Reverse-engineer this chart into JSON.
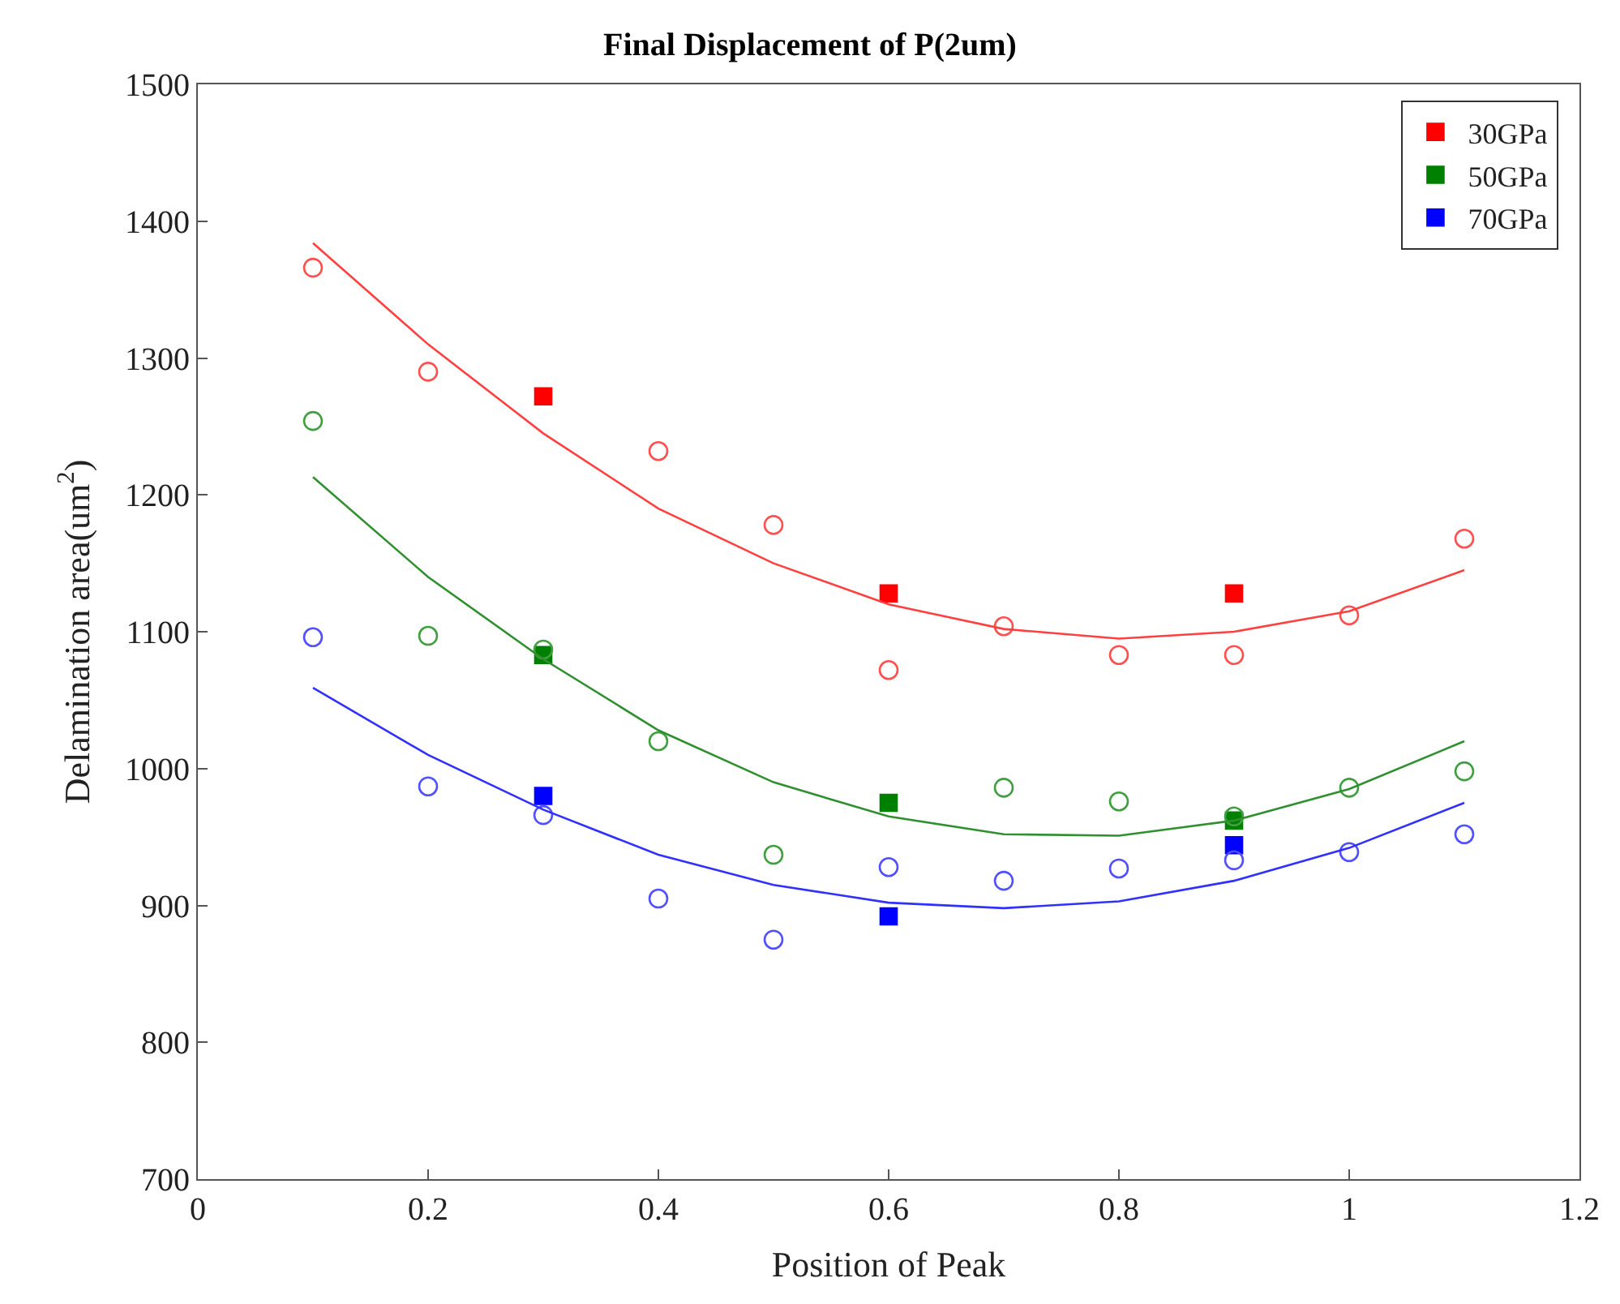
{
  "chart_data": {
    "type": "scatter",
    "title": "Final Displacement of P(2um)",
    "xlabel": "Position of Peak",
    "ylabel": "Delamination area(um$^{2}$)",
    "xlim": [
      0,
      1.2
    ],
    "xticks": [
      0,
      0.2,
      0.4,
      0.6,
      0.8,
      1,
      1.2
    ],
    "ylim": [
      700,
      1500
    ],
    "yticks": [
      700,
      800,
      900,
      1000,
      1100,
      1200,
      1300,
      1400,
      1500
    ],
    "grid": false,
    "legend": "top right",
    "series": [
      {
        "name": "30GPa",
        "marker": "square",
        "color": "#ff0000",
        "x": [
          0.3,
          0.6,
          0.9
        ],
        "values": [
          1272,
          1128,
          1128
        ]
      },
      {
        "name": "50GPa",
        "marker": "square",
        "color": "#008000",
        "x": [
          0.3,
          0.6,
          0.9
        ],
        "values": [
          1083,
          975,
          962
        ]
      },
      {
        "name": "70GPa",
        "marker": "square",
        "color": "#0000ff",
        "x": [
          0.3,
          0.6,
          0.9
        ],
        "values": [
          980,
          892,
          944
        ]
      },
      {
        "marker": "circle",
        "color": "#ff5050",
        "x": [
          0.1,
          0.2,
          0.4,
          0.5,
          0.6,
          0.7,
          0.8,
          0.9,
          1.0,
          1.1
        ],
        "values": [
          1366,
          1290,
          1232,
          1178,
          1072,
          1104,
          1083,
          1083,
          1112,
          1168
        ]
      },
      {
        "marker": "circle",
        "color": "#40a040",
        "x": [
          0.1,
          0.2,
          0.3,
          0.4,
          0.5,
          0.7,
          0.8,
          0.9,
          1.0,
          1.1
        ],
        "values": [
          1254,
          1097,
          1087,
          1020,
          937,
          986,
          976,
          965,
          986,
          998
        ]
      },
      {
        "marker": "circle",
        "color": "#5050ff",
        "x": [
          0.1,
          0.2,
          0.3,
          0.4,
          0.5,
          0.6,
          0.7,
          0.8,
          0.9,
          1.0,
          1.1
        ],
        "values": [
          1096,
          987,
          966,
          905,
          875,
          928,
          918,
          927,
          933,
          939,
          952
        ]
      },
      {
        "type": "line",
        "marker": "none",
        "line_style": "solid",
        "color": "#ff4040",
        "x": [
          0.1,
          0.2,
          0.3,
          0.4,
          0.5,
          0.6,
          0.7,
          0.8,
          0.9,
          1.0,
          1.1
        ],
        "values": [
          1384,
          1310,
          1245,
          1190,
          1150,
          1120,
          1102,
          1095,
          1100,
          1115,
          1145
        ]
      },
      {
        "type": "line",
        "marker": "none",
        "line_style": "solid",
        "color": "#309030",
        "x": [
          0.1,
          0.2,
          0.3,
          0.4,
          0.5,
          0.6,
          0.7,
          0.8,
          0.9,
          1.0,
          1.1
        ],
        "values": [
          1213,
          1140,
          1080,
          1028,
          990,
          965,
          952,
          951,
          962,
          985,
          1020
        ]
      },
      {
        "type": "line",
        "marker": "none",
        "line_style": "solid",
        "color": "#3030ff",
        "x": [
          0.1,
          0.2,
          0.3,
          0.4,
          0.5,
          0.6,
          0.7,
          0.8,
          0.9,
          1.0,
          1.1
        ],
        "values": [
          1059,
          1010,
          970,
          937,
          915,
          902,
          898,
          903,
          918,
          942,
          975
        ]
      }
    ]
  }
}
